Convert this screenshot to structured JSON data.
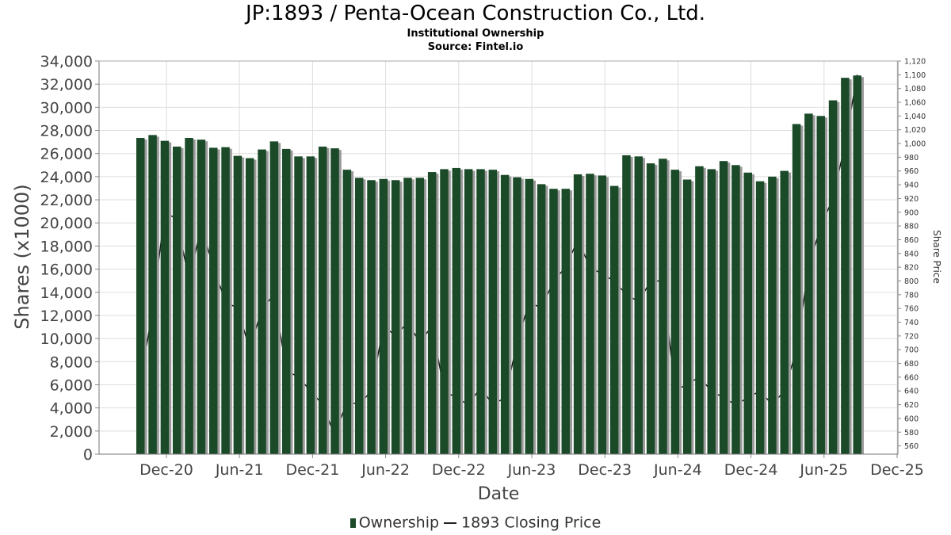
{
  "title": "JP:1893 / Penta-Ocean Construction Co., Ltd.",
  "subtitle": "Institutional Ownership",
  "source": "Source: Fintel.io",
  "colors": {
    "bar": "#1b4a29",
    "bar_shadow": "#9a9a9a",
    "line": "#111111",
    "grid": "#dddddd"
  },
  "chart_data": {
    "type": "bar",
    "title": "JP:1893 / Penta-Ocean Construction Co., Ltd.",
    "xlabel": "Date",
    "ylabel": "Shares (x1000)",
    "y2label": "Share Price",
    "ylim": [
      0,
      34000
    ],
    "y2lim": [
      548,
      1120
    ],
    "grid": true,
    "legend_position": "bottom-center",
    "x_ticks": [
      "Dec-20",
      "Jun-21",
      "Dec-21",
      "Jun-22",
      "Dec-22",
      "Jun-23",
      "Dec-23",
      "Jun-24",
      "Dec-24",
      "Jun-25",
      "Dec-25"
    ],
    "y_ticks": [
      0,
      2000,
      4000,
      6000,
      8000,
      10000,
      12000,
      14000,
      16000,
      18000,
      20000,
      22000,
      24000,
      26000,
      28000,
      30000,
      32000,
      34000
    ],
    "y_tick_labels": [
      "0",
      "2,000",
      "4,000",
      "6,000",
      "8,000",
      "10,000",
      "12,000",
      "14,000",
      "16,000",
      "18,000",
      "20,000",
      "22,000",
      "24,000",
      "26,000",
      "28,000",
      "30,000",
      "32,000",
      "34,000"
    ],
    "y2_ticks": [
      560,
      580,
      600,
      620,
      640,
      660,
      680,
      700,
      720,
      740,
      760,
      780,
      800,
      820,
      840,
      860,
      880,
      900,
      920,
      940,
      960,
      980,
      1000,
      1020,
      1040,
      1060,
      1080,
      1100,
      1120
    ],
    "y2_tick_labels": [
      "560",
      "580",
      "600",
      "620",
      "640",
      "660",
      "680",
      "700",
      "720",
      "740",
      "760",
      "780",
      "800",
      "820",
      "840",
      "860",
      "880",
      "900",
      "920",
      "940",
      "960",
      "980",
      "1,000",
      "1,020",
      "1,040",
      "1,060",
      "1,080",
      "1,100",
      "1,120"
    ],
    "series": [
      {
        "name": "Ownership",
        "type": "bar",
        "values": [
          27350,
          27600,
          27100,
          26600,
          27350,
          27200,
          26500,
          26550,
          25800,
          25600,
          26350,
          27050,
          26400,
          25750,
          25750,
          26600,
          26450,
          24600,
          23900,
          23700,
          23800,
          23700,
          23900,
          23900,
          24400,
          24650,
          24750,
          24650,
          24650,
          24600,
          24150,
          23950,
          23800,
          23350,
          22950,
          22950,
          24200,
          24250,
          24100,
          23200,
          25850,
          25750,
          25150,
          25550,
          24600,
          23750,
          24900,
          24650,
          25350,
          25000,
          24350,
          23600,
          24000,
          24500,
          28550,
          29450,
          29250,
          30600,
          32550,
          32750
        ]
      },
      {
        "name": "1893 Closing Price",
        "type": "line",
        "values": [
          650,
          760,
          900,
          890,
          800,
          880,
          820,
          770,
          760,
          700,
          760,
          780,
          670,
          660,
          640,
          620,
          575,
          625,
          620,
          640,
          735,
          720,
          740,
          710,
          735,
          640,
          630,
          620,
          645,
          620,
          630,
          710,
          770,
          760,
          800,
          820,
          860,
          820,
          810,
          800,
          780,
          770,
          800,
          800,
          640,
          650,
          660,
          640,
          630,
          620,
          630,
          640,
          620,
          640,
          700,
          820,
          880,
          920,
          1000,
          1100
        ]
      }
    ]
  }
}
